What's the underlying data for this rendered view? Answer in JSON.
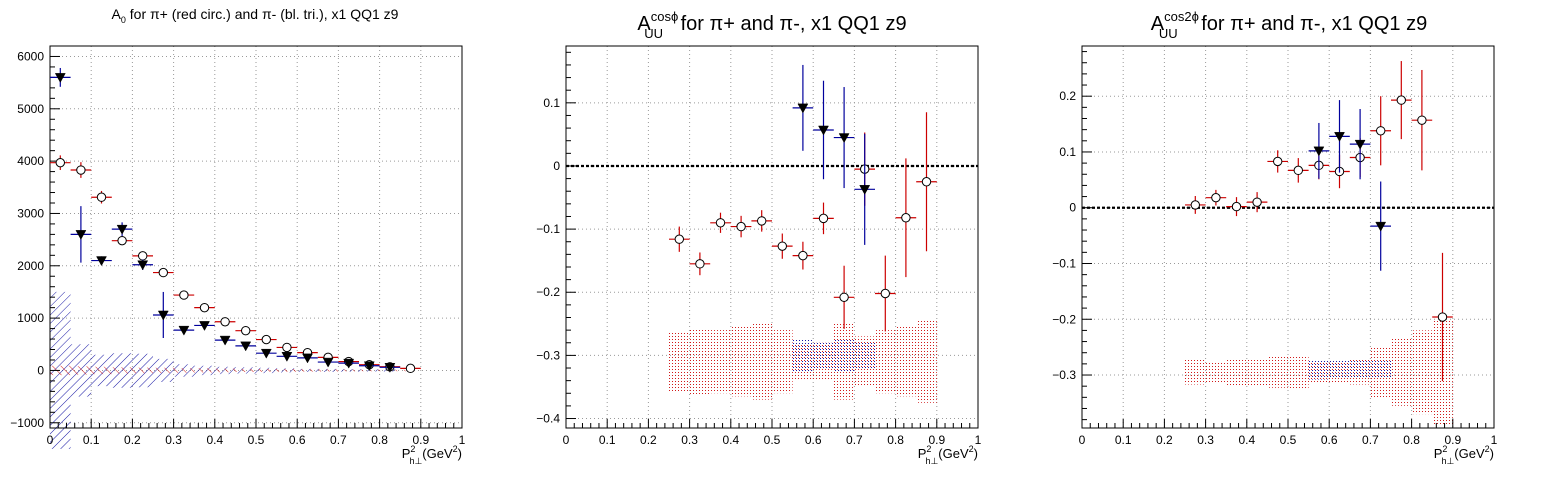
{
  "charts": [
    {
      "title_main": "A",
      "title_sub": "0",
      "title_sup": "",
      "title_rest": " for π+ (red circ.) and π- (bl. tri.), x1 QQ1 z9",
      "xaxis_main": "P",
      "xaxis_sup": "2",
      "xaxis_sub": "h⊥",
      "xaxis_rest": "(GeV",
      "xaxis_sup2": "2",
      "xaxis_end": ")"
    },
    {
      "title_main": "A",
      "title_sub": "UU",
      "title_sup": "cosϕ",
      "title_rest": " for π+ and π-, x1 QQ1 z9",
      "xaxis_main": "P",
      "xaxis_sup": "2",
      "xaxis_sub": "h⊥",
      "xaxis_rest": "(GeV",
      "xaxis_sup2": "2",
      "xaxis_end": ")"
    },
    {
      "title_main": "A",
      "title_sub": "UU",
      "title_sup": "cos2ϕ",
      "title_rest": " for π+ and π-, x1 QQ1 z9",
      "xaxis_main": "P",
      "xaxis_sup": "2",
      "xaxis_sub": "h⊥",
      "xaxis_rest": "(GeV",
      "xaxis_sup2": "2",
      "xaxis_end": ")"
    }
  ],
  "chart_data": [
    {
      "type": "scatter",
      "title": "A0 for π+ (red circ.) and π- (bl. tri.), x1 QQ1 z9",
      "xlabel": "P²h⊥(GeV²)",
      "ylabel": "",
      "xlim": [
        0,
        1
      ],
      "ylim": [
        -1100,
        6200
      ],
      "xticks": [
        0,
        0.1,
        0.2,
        0.3,
        0.4,
        0.5,
        0.6,
        0.7,
        0.8,
        0.9,
        1
      ],
      "xtick_labels": [
        "0",
        "0.1",
        "0.2",
        "0.3",
        "0.4",
        "0.5",
        "0.6",
        "0.7",
        "0.8",
        "0.9",
        "1"
      ],
      "yticks": [
        -1000,
        0,
        1000,
        2000,
        3000,
        4000,
        5000,
        6000
      ],
      "ytick_labels": [
        "−1000",
        "0",
        "1000",
        "2000",
        "3000",
        "4000",
        "5000",
        "6000"
      ],
      "grid": true,
      "zero_line": false,
      "series": [
        {
          "marker": "circle",
          "color": "#cc0000",
          "x": [
            0.025,
            0.075,
            0.125,
            0.175,
            0.225,
            0.275,
            0.325,
            0.375,
            0.425,
            0.475,
            0.525,
            0.575,
            0.625,
            0.675,
            0.725,
            0.775,
            0.825,
            0.875
          ],
          "y": [
            3970,
            3830,
            3310,
            2480,
            2190,
            1870,
            1440,
            1200,
            930,
            760,
            590,
            440,
            340,
            250,
            170,
            110,
            70,
            40
          ],
          "yerr": [
            140,
            150,
            120,
            80,
            70,
            60,
            50,
            50,
            40,
            40,
            30,
            30,
            30,
            20,
            20,
            20,
            20,
            20
          ]
        },
        {
          "marker": "triangle-down",
          "color": "#00009c",
          "x": [
            0.025,
            0.075,
            0.125,
            0.175,
            0.225,
            0.275,
            0.325,
            0.375,
            0.425,
            0.475,
            0.525,
            0.575,
            0.625,
            0.675,
            0.725,
            0.775,
            0.825
          ],
          "y": [
            5600,
            2600,
            2100,
            2700,
            2020,
            1060,
            770,
            860,
            580,
            470,
            330,
            270,
            240,
            160,
            140,
            90,
            60
          ],
          "yerr": [
            180,
            540,
            80,
            130,
            100,
            440,
            60,
            60,
            50,
            40,
            30,
            30,
            30,
            20,
            20,
            20,
            20
          ]
        }
      ],
      "bands": [
        {
          "color": "#00009c",
          "x": [
            0.025,
            0.075,
            0.125,
            0.175,
            0.225,
            0.275,
            0.325,
            0.375,
            0.425,
            0.475,
            0.525,
            0.575,
            0.625,
            0.675,
            0.725,
            0.775,
            0.825
          ],
          "center": [
            0,
            0,
            0,
            0,
            0,
            0,
            0,
            0,
            0,
            0,
            0,
            0,
            0,
            0,
            0,
            0,
            0
          ],
          "half": [
            1500,
            500,
            300,
            330,
            320,
            220,
            120,
            90,
            70,
            60,
            50,
            40,
            30,
            30,
            25,
            20,
            20
          ]
        },
        {
          "color": "#cc0000",
          "x": [
            0.025,
            0.075,
            0.125,
            0.175,
            0.225,
            0.275,
            0.325,
            0.375,
            0.425,
            0.475,
            0.525,
            0.575,
            0.625,
            0.675,
            0.725,
            0.775,
            0.825,
            0.875
          ],
          "center": [
            0,
            0,
            0,
            0,
            0,
            0,
            0,
            0,
            0,
            0,
            0,
            0,
            0,
            0,
            0,
            0,
            0,
            0
          ],
          "half": [
            90,
            80,
            70,
            60,
            55,
            50,
            45,
            40,
            35,
            30,
            28,
            25,
            22,
            20,
            18,
            16,
            15,
            14
          ]
        }
      ]
    },
    {
      "type": "scatter",
      "title": "A_UU^cosϕ for π+ and π-, x1 QQ1 z9",
      "xlabel": "P²h⊥(GeV²)",
      "ylabel": "",
      "xlim": [
        0,
        1
      ],
      "ylim": [
        -0.415,
        0.19
      ],
      "xticks": [
        0,
        0.1,
        0.2,
        0.3,
        0.4,
        0.5,
        0.6,
        0.7,
        0.8,
        0.9,
        1
      ],
      "xtick_labels": [
        "0",
        "0.1",
        "0.2",
        "0.3",
        "0.4",
        "0.5",
        "0.6",
        "0.7",
        "0.8",
        "0.9",
        "1"
      ],
      "yticks": [
        -0.4,
        -0.3,
        -0.2,
        -0.1,
        0,
        0.1
      ],
      "ytick_labels": [
        "−0.4",
        "−0.3",
        "−0.2",
        "−0.1",
        "0",
        "0.1"
      ],
      "grid": true,
      "zero_line": true,
      "series": [
        {
          "marker": "circle",
          "color": "#cc0000",
          "x": [
            0.275,
            0.325,
            0.375,
            0.425,
            0.475,
            0.525,
            0.575,
            0.625,
            0.675,
            0.725,
            0.775,
            0.825,
            0.875
          ],
          "y": [
            -0.116,
            -0.155,
            -0.09,
            -0.096,
            -0.087,
            -0.127,
            -0.142,
            -0.083,
            -0.208,
            -0.005,
            -0.202,
            -0.082,
            -0.025
          ],
          "yerr": [
            0.02,
            0.018,
            0.016,
            0.017,
            0.017,
            0.02,
            0.022,
            0.025,
            0.05,
            0.058,
            0.06,
            0.094,
            0.11
          ]
        },
        {
          "marker": "triangle-down",
          "color": "#00009c",
          "x": [
            0.575,
            0.625,
            0.675,
            0.725
          ],
          "y": [
            0.092,
            0.057,
            0.045,
            -0.037
          ],
          "yerr": [
            0.068,
            0.078,
            0.08,
            0.088
          ]
        }
      ],
      "bands": [
        {
          "color": "#cc0000",
          "x": [
            0.275,
            0.325,
            0.375,
            0.425,
            0.475,
            0.525,
            0.575,
            0.625,
            0.675,
            0.725,
            0.775,
            0.825,
            0.875
          ],
          "center": [
            -0.31,
            -0.31,
            -0.31,
            -0.31,
            -0.31,
            -0.31,
            -0.31,
            -0.31,
            -0.31,
            -0.31,
            -0.31,
            -0.31,
            -0.31
          ],
          "half": [
            0.048,
            0.052,
            0.05,
            0.055,
            0.06,
            0.05,
            0.028,
            0.03,
            0.06,
            0.04,
            0.05,
            0.055,
            0.065
          ]
        },
        {
          "color": "#00009c",
          "x": [
            0.575,
            0.625,
            0.675,
            0.725
          ],
          "center": [
            -0.3,
            -0.3,
            -0.3,
            -0.3
          ],
          "half": [
            0.025,
            0.022,
            0.025,
            0.022
          ]
        }
      ]
    },
    {
      "type": "scatter",
      "title": "A_UU^cos2ϕ for π+ and π-, x1 QQ1 z9",
      "xlabel": "P²h⊥(GeV²)",
      "ylabel": "",
      "xlim": [
        0,
        1
      ],
      "ylim": [
        -0.395,
        0.29
      ],
      "xticks": [
        0,
        0.1,
        0.2,
        0.3,
        0.4,
        0.5,
        0.6,
        0.7,
        0.8,
        0.9,
        1
      ],
      "xtick_labels": [
        "0",
        "0.1",
        "0.2",
        "0.3",
        "0.4",
        "0.5",
        "0.6",
        "0.7",
        "0.8",
        "0.9",
        "1"
      ],
      "yticks": [
        -0.3,
        -0.2,
        -0.1,
        0,
        0.1,
        0.2
      ],
      "ytick_labels": [
        "−0.3",
        "−0.2",
        "−0.1",
        "0",
        "0.1",
        "0.2"
      ],
      "grid": true,
      "zero_line": true,
      "series": [
        {
          "marker": "circle",
          "color": "#cc0000",
          "x": [
            0.275,
            0.325,
            0.375,
            0.425,
            0.475,
            0.525,
            0.575,
            0.625,
            0.675,
            0.725,
            0.775,
            0.825,
            0.875
          ],
          "y": [
            0.005,
            0.018,
            0.002,
            0.01,
            0.083,
            0.067,
            0.076,
            0.065,
            0.09,
            0.138,
            0.193,
            0.157,
            -0.196
          ],
          "yerr": [
            0.016,
            0.014,
            0.017,
            0.018,
            0.02,
            0.022,
            0.025,
            0.03,
            0.035,
            0.062,
            0.07,
            0.09,
            0.115
          ]
        },
        {
          "marker": "triangle-down",
          "color": "#00009c",
          "x": [
            0.575,
            0.625,
            0.675,
            0.725
          ],
          "y": [
            0.102,
            0.128,
            0.114,
            -0.033
          ],
          "yerr": [
            0.05,
            0.065,
            0.063,
            0.08
          ]
        }
      ],
      "bands": [
        {
          "color": "#cc0000",
          "x": [
            0.275,
            0.325,
            0.375,
            0.425,
            0.475,
            0.525,
            0.575,
            0.625,
            0.675,
            0.725,
            0.775,
            0.825,
            0.875
          ],
          "center": [
            -0.295,
            -0.295,
            -0.295,
            -0.295,
            -0.295,
            -0.295,
            -0.295,
            -0.295,
            -0.295,
            -0.295,
            -0.295,
            -0.295,
            -0.295
          ],
          "half": [
            0.022,
            0.02,
            0.025,
            0.025,
            0.028,
            0.03,
            0.018,
            0.018,
            0.022,
            0.045,
            0.06,
            0.075,
            0.095
          ]
        },
        {
          "color": "#00009c",
          "x": [
            0.575,
            0.625,
            0.675,
            0.725
          ],
          "center": [
            -0.29,
            -0.29,
            -0.29,
            -0.29
          ],
          "half": [
            0.018,
            0.016,
            0.016,
            0.016
          ]
        }
      ]
    }
  ]
}
